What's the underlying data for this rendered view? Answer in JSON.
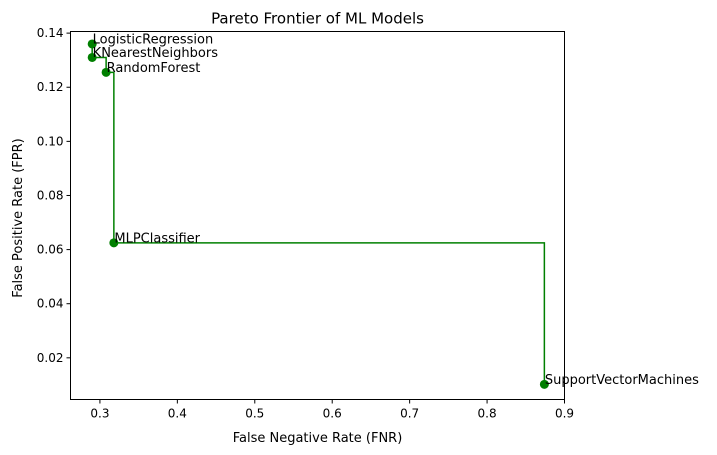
{
  "chart_data": {
    "type": "scatter",
    "title": "Pareto Frontier of ML Models",
    "xlabel": "False Negative Rate (FNR)",
    "ylabel": "False Positive Rate (FPR)",
    "xlim": [
      0.262,
      0.9
    ],
    "ylim": [
      0.0046,
      0.1406
    ],
    "xticks": [
      0.3,
      0.4,
      0.5,
      0.6,
      0.7,
      0.8,
      0.9
    ],
    "xtick_labels": [
      "0.3",
      "0.4",
      "0.5",
      "0.6",
      "0.7",
      "0.8",
      "0.9"
    ],
    "yticks": [
      0.02,
      0.04,
      0.06,
      0.08,
      0.1,
      0.12,
      0.14
    ],
    "ytick_labels": [
      "0.02",
      "0.04",
      "0.06",
      "0.08",
      "0.10",
      "0.12",
      "0.14"
    ],
    "grid": false,
    "legend": "none",
    "colors": {
      "point": "#007f00",
      "frontier": "#008000"
    },
    "points": [
      {
        "label": "LogisticRegression",
        "x": 0.29,
        "y": 0.136
      },
      {
        "label": "KNearestNeighbors",
        "x": 0.29,
        "y": 0.131
      },
      {
        "label": "RandomForest",
        "x": 0.308,
        "y": 0.1255
      },
      {
        "label": "MLPClassifier",
        "x": 0.318,
        "y": 0.0625
      },
      {
        "label": "SupportVectorMachines",
        "x": 0.874,
        "y": 0.0102
      }
    ],
    "frontier": [
      {
        "x": 0.29,
        "y": 0.136
      },
      {
        "x": 0.29,
        "y": 0.131
      },
      {
        "x": 0.308,
        "y": 0.131
      },
      {
        "x": 0.308,
        "y": 0.1255
      },
      {
        "x": 0.318,
        "y": 0.1255
      },
      {
        "x": 0.318,
        "y": 0.0625
      },
      {
        "x": 0.874,
        "y": 0.0625
      },
      {
        "x": 0.874,
        "y": 0.0102
      }
    ]
  }
}
